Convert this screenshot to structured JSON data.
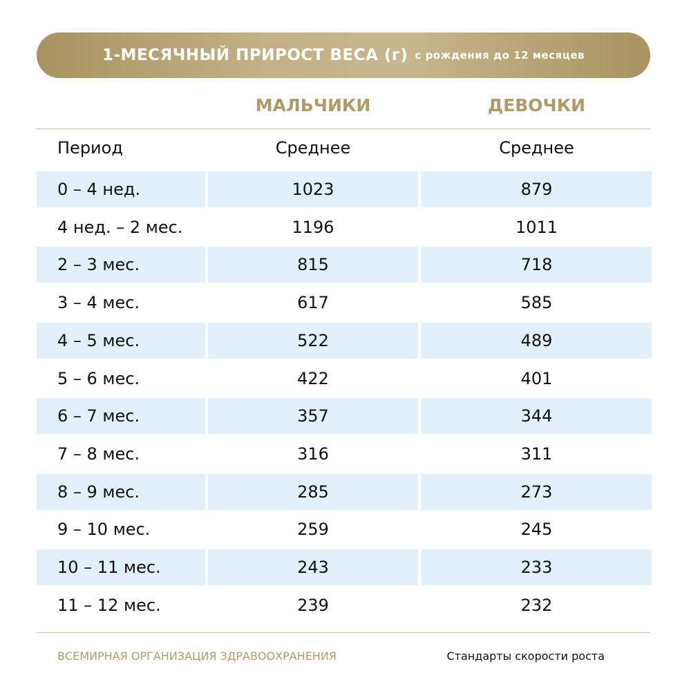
{
  "header": {
    "title": "1-МЕСЯЧНЫЙ ПРИРОСТ ВЕСА (г)",
    "subtitle": "с рождения до 12 месяцев"
  },
  "table": {
    "groups": [
      "МАЛЬЧИКИ",
      "ДЕВОЧКИ"
    ],
    "columns": [
      "Период",
      "Среднее",
      "Среднее"
    ],
    "rows": [
      [
        "0 – 4 нед.",
        1023,
        879
      ],
      [
        "4 нед. – 2 мес.",
        1196,
        1011
      ],
      [
        "2 – 3 мес.",
        815,
        718
      ],
      [
        "3 – 4 мес.",
        617,
        585
      ],
      [
        "4 – 5 мес.",
        522,
        489
      ],
      [
        "5 – 6 мес.",
        422,
        401
      ],
      [
        "6 – 7 мес.",
        357,
        344
      ],
      [
        "7 – 8 мес.",
        316,
        311
      ],
      [
        "8 – 9 мес.",
        285,
        273
      ],
      [
        "9 – 10 мес.",
        259,
        245
      ],
      [
        "10 – 11 мес.",
        243,
        233
      ],
      [
        "11 – 12 мес.",
        239,
        232
      ]
    ]
  },
  "footer": {
    "source": "ВСЕМИРНАЯ ОРГАНИЗАЦИЯ ЗДРАВООХРАНЕНИЯ",
    "note": "Стандарты скорости роста"
  }
}
